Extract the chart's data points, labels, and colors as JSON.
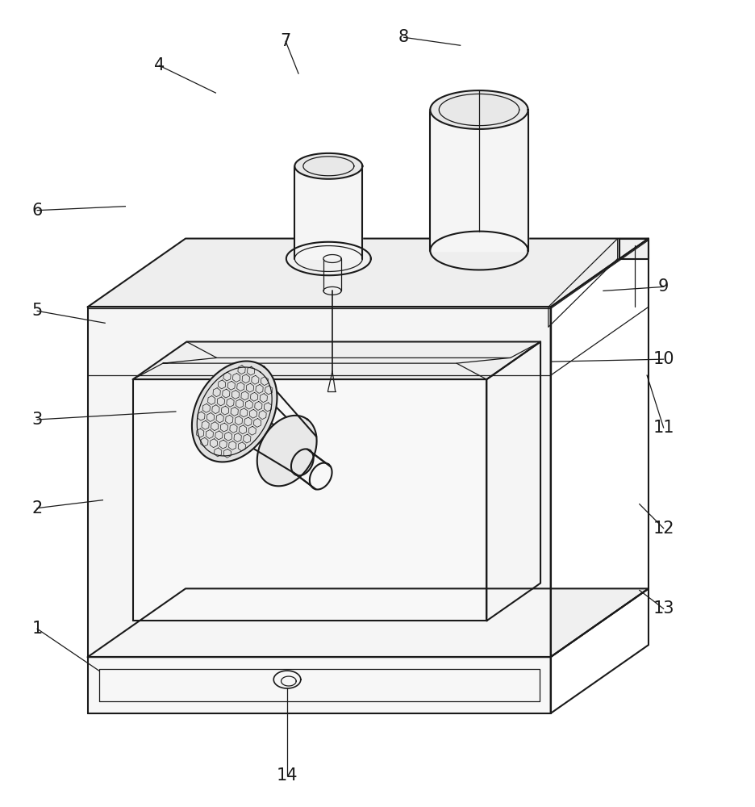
{
  "bg_color": "#ffffff",
  "line_color": "#1a1a1a",
  "lw": 1.5,
  "tlw": 0.9,
  "label_fontsize": 15,
  "fig_w": 9.36,
  "fig_h": 10.0,
  "ox": 0.13,
  "oy": 0.085
}
